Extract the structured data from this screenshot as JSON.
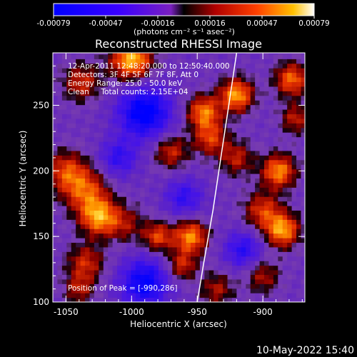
{
  "chart_data": {
    "type": "heatmap",
    "title": "Reconstructed RHESSI Image",
    "xlabel": "Heliocentric X (arcsec)",
    "ylabel": "Heliocentric Y (arcsec)",
    "xlim": [
      -1060,
      -868
    ],
    "ylim": [
      100,
      290
    ],
    "x_ticks": [
      -1050,
      -1000,
      -950,
      -900
    ],
    "y_ticks": [
      100,
      150,
      200,
      250
    ],
    "x_tick_labels": [
      "-1050",
      "-1000",
      "-950",
      "-900"
    ],
    "y_tick_labels": [
      "100",
      "150",
      "200",
      "250"
    ],
    "colorbar": {
      "range": [
        -0.00079,
        0.00079
      ],
      "ticks": [
        "-0.00079",
        "-0.00047",
        "-0.00016",
        "0.00016",
        "0.00047",
        "0.00079"
      ],
      "unit_label": "(photons cm⁻² s⁻¹ asec⁻²)"
    },
    "info_lines": [
      "12-Apr-2011 12:48:20.000 to 12:50:40.000",
      "Detectors: 3F 4F 5F 6F 7F 8F, Att 0",
      "Energy Range: 25.0 - 50.0 keV",
      "Clean     Total counts: 2.15E+04"
    ],
    "peak_label": "Position of Peak = [-990,286]",
    "limb_curve": [
      [
        -950,
        100
      ],
      [
        -945,
        130
      ],
      [
        -938,
        170
      ],
      [
        -932,
        210
      ],
      [
        -926,
        250
      ],
      [
        -920,
        290
      ]
    ],
    "blobs": [
      {
        "x": -1000,
        "y": 285,
        "v": 1.0,
        "s": 11
      },
      {
        "x": -1038,
        "y": 268,
        "v": 0.55,
        "s": 10
      },
      {
        "x": -1050,
        "y": 200,
        "v": 0.6,
        "s": 11
      },
      {
        "x": -1035,
        "y": 185,
        "v": 0.65,
        "s": 12
      },
      {
        "x": -1025,
        "y": 165,
        "v": 0.85,
        "s": 10
      },
      {
        "x": -1035,
        "y": 130,
        "v": 0.55,
        "s": 10
      },
      {
        "x": -1040,
        "y": 110,
        "v": 0.45,
        "s": 8
      },
      {
        "x": -1005,
        "y": 160,
        "v": 0.4,
        "s": 10
      },
      {
        "x": -970,
        "y": 215,
        "v": 0.55,
        "s": 9
      },
      {
        "x": -980,
        "y": 150,
        "v": 0.65,
        "s": 8
      },
      {
        "x": -955,
        "y": 150,
        "v": 0.85,
        "s": 9
      },
      {
        "x": -962,
        "y": 128,
        "v": 0.55,
        "s": 8
      },
      {
        "x": -945,
        "y": 245,
        "v": 0.8,
        "s": 9
      },
      {
        "x": -940,
        "y": 225,
        "v": 0.6,
        "s": 9
      },
      {
        "x": -920,
        "y": 258,
        "v": 0.9,
        "s": 9
      },
      {
        "x": -920,
        "y": 210,
        "v": 0.5,
        "s": 9
      },
      {
        "x": -935,
        "y": 110,
        "v": 0.45,
        "s": 9
      },
      {
        "x": -900,
        "y": 170,
        "v": 0.6,
        "s": 10
      },
      {
        "x": -888,
        "y": 200,
        "v": 0.85,
        "s": 9
      },
      {
        "x": -885,
        "y": 155,
        "v": 0.9,
        "s": 9
      },
      {
        "x": -878,
        "y": 270,
        "v": 0.75,
        "s": 9
      },
      {
        "x": -875,
        "y": 240,
        "v": 0.5,
        "s": 8
      },
      {
        "x": -900,
        "y": 120,
        "v": 0.45,
        "s": 9
      }
    ],
    "dips": [
      {
        "x": -990,
        "y": 245,
        "v": 0.9,
        "s": 14
      },
      {
        "x": -1010,
        "y": 210,
        "v": 0.5,
        "s": 10
      },
      {
        "x": -990,
        "y": 115,
        "v": 0.8,
        "s": 13
      },
      {
        "x": -960,
        "y": 180,
        "v": 0.5,
        "s": 10
      },
      {
        "x": -915,
        "y": 140,
        "v": 0.55,
        "s": 10
      }
    ]
  },
  "footer": {
    "timestamp": "10-May-2022 15:40"
  }
}
